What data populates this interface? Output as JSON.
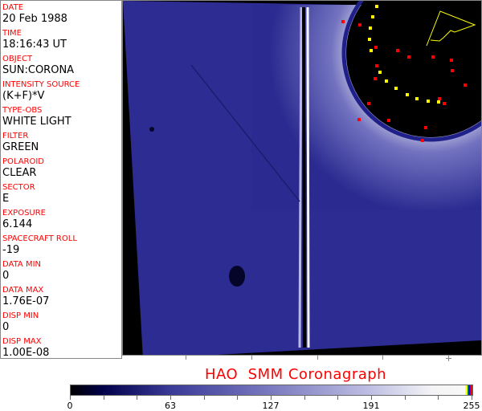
{
  "metadata_panel": [
    {
      "label": "DATE",
      "value": "20 Feb 1988"
    },
    {
      "label": "TIME",
      "value": "18:16:43 UT"
    },
    {
      "label": "OBJECT",
      "value": "SUN:CORONA"
    },
    {
      "label": "INTENSITY SOURCE",
      "value": "(K+F)*V"
    },
    {
      "label": "TYPE-OBS",
      "value": "WHITE LIGHT"
    },
    {
      "label": "FILTER",
      "value": "GREEN"
    },
    {
      "label": "POLAROID",
      "value": "CLEAR"
    },
    {
      "label": "SECTOR",
      "value": "E"
    },
    {
      "label": "EXPOSURE",
      "value": "6.144"
    },
    {
      "label": "SPACECRAFT ROLL",
      "value": "-19"
    },
    {
      "label": "DATA MIN",
      "value": "0"
    },
    {
      "label": "DATA MAX",
      "value": "1.76E-07"
    },
    {
      "label": "DISP MIN",
      "value": "0"
    },
    {
      "label": "DISP MAX",
      "value": "1.00E-08"
    }
  ],
  "title": "HAO  SMM Coronagraph",
  "colorbar": {
    "ticks": [
      "0",
      "63",
      "127",
      "191",
      "255"
    ],
    "colors": {
      "low": "#000000",
      "mid": "#7a7ac0",
      "high": "#f8f8f8",
      "labels": "#ff0000"
    }
  }
}
